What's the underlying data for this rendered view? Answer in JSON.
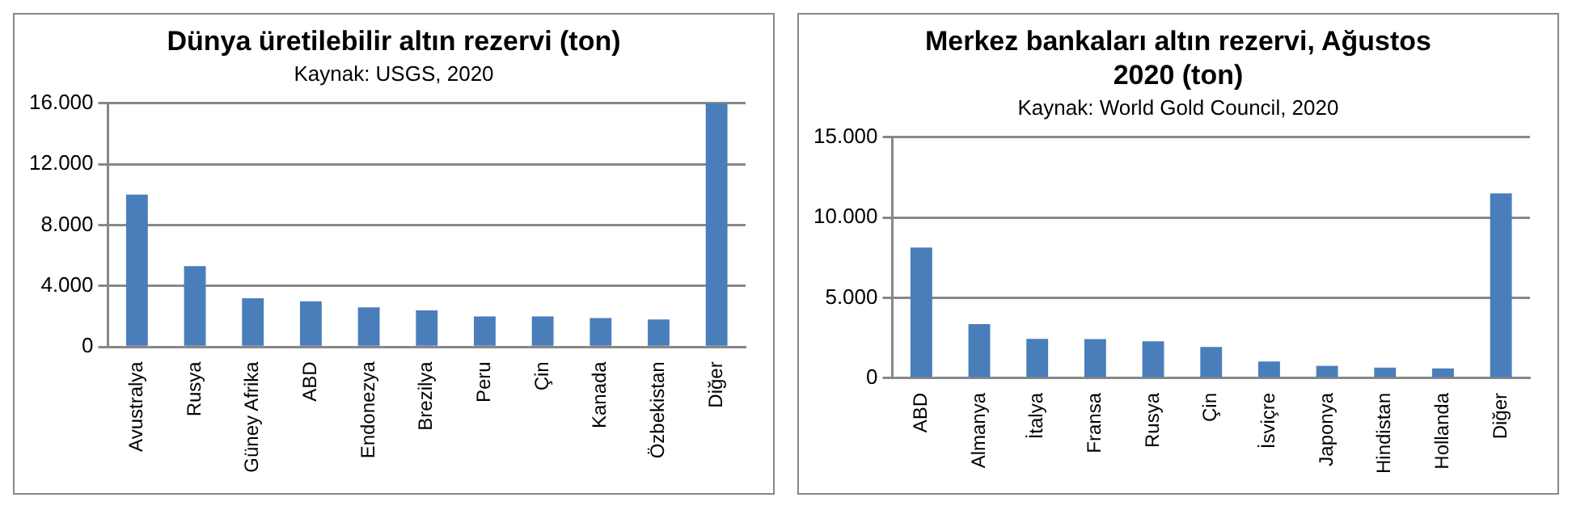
{
  "chart_data": [
    {
      "type": "bar",
      "title": "Dünya üretilebilir altın rezervi (ton)",
      "annotations": [
        "Kaynak: USGS, 2020"
      ],
      "categories": [
        "Avustralya",
        "Rusya",
        "Güney Afrika",
        "ABD",
        "Endonezya",
        "Brezilya",
        "Peru",
        "Çin",
        "Kanada",
        "Özbekistan",
        "Diğer"
      ],
      "values": [
        10000,
        5300,
        3200,
        3000,
        2600,
        2400,
        2000,
        2000,
        1900,
        1800,
        16000
      ],
      "color": "#4a7ebb",
      "ylim": [
        0,
        16000
      ],
      "yticks": [
        {
          "value": 0,
          "label": "0"
        },
        {
          "value": 4000,
          "label": "4.000"
        },
        {
          "value": 8000,
          "label": "8.000"
        },
        {
          "value": 12000,
          "label": "12.000"
        },
        {
          "value": 16000,
          "label": "16.000"
        }
      ],
      "grid": "y"
    },
    {
      "type": "bar",
      "title": "Merkez bankaları altın rezervi, Ağustos 2020 (ton)",
      "annotations": [
        "Kaynak: World Gold Council, 2020"
      ],
      "categories": [
        "ABD",
        "Almanya",
        "İtalya",
        "Fransa",
        "Rusya",
        "Çin",
        "İsviçre",
        "Japonya",
        "Hindistan",
        "Hollanda",
        "Diğer"
      ],
      "values": [
        8130,
        3360,
        2450,
        2440,
        2300,
        1950,
        1040,
        770,
        660,
        610,
        11500
      ],
      "color": "#4a7ebb",
      "ylim": [
        0,
        15000
      ],
      "yticks": [
        {
          "value": 0,
          "label": "0"
        },
        {
          "value": 5000,
          "label": "5.000"
        },
        {
          "value": 10000,
          "label": "10.000"
        },
        {
          "value": 15000,
          "label": "15.000"
        }
      ],
      "grid": "y"
    }
  ]
}
